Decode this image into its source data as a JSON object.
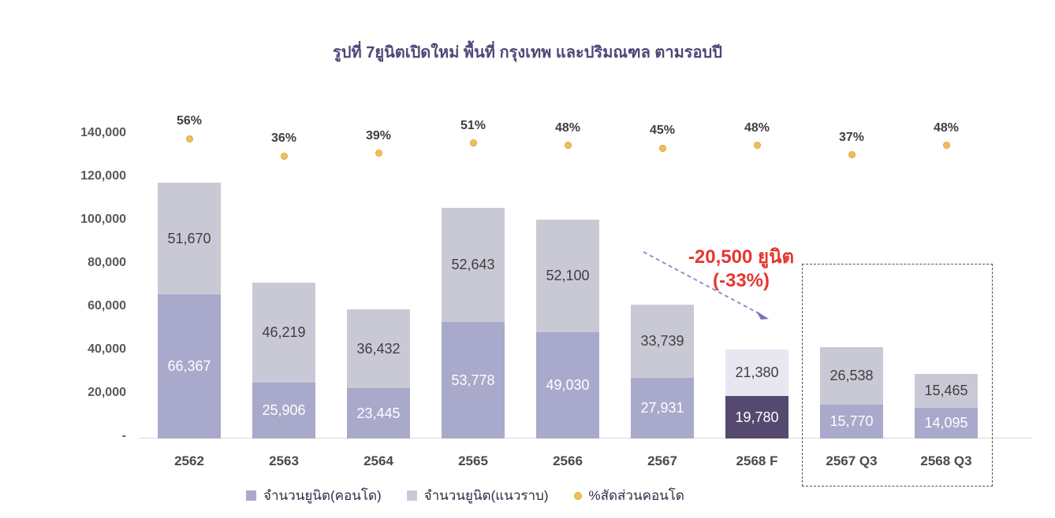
{
  "title": "รูปที่ 7ยูนิตเปิดใหม่ พื้นที่ กรุงเทพ และปริมณฑล ตามรอบปี",
  "chart_data": {
    "type": "bar",
    "stacked": true,
    "categories": [
      "2562",
      "2563",
      "2564",
      "2565",
      "2566",
      "2567",
      "2568 F",
      "2567 Q3",
      "2568 Q3"
    ],
    "series": [
      {
        "name": "จำนวนยูนิต(คอนโด)",
        "values": [
          66367,
          25906,
          23445,
          53778,
          49030,
          27931,
          19780,
          15770,
          14095
        ]
      },
      {
        "name": "จำนวนยูนิต(แนวราบ)",
        "values": [
          51670,
          46219,
          36432,
          52643,
          52100,
          33739,
          21380,
          26538,
          15465
        ]
      }
    ],
    "percent_series": {
      "name": "%สัดส่วนคอนโด",
      "values": [
        56,
        36,
        39,
        51,
        48,
        45,
        48,
        37,
        48
      ],
      "unit": "%"
    },
    "y_ticks": [
      "140,000",
      "120,000",
      "100,000",
      "80,000",
      "60,000",
      "40,000",
      "20,000",
      "-"
    ],
    "ylim": [
      0,
      140000
    ],
    "grid": false,
    "legend_position": "bottom",
    "forecast_category": "2568 F",
    "highlight_categories": [
      "2567 Q3",
      "2568 Q3"
    ],
    "annotation": {
      "line1": "-20,500 ยูนิต",
      "line2": "(-33%)"
    },
    "colors": {
      "condo": "#a9a9cc",
      "lowrise": "#c9c9d6",
      "condo_forecast": "#55496f",
      "lowrise_forecast": "#e7e6f1",
      "dot": "#efc05a",
      "dot_border": "#d9a23b",
      "title": "#4d4878",
      "annotation": "#e5372e",
      "arrow": "#9192cd",
      "bar_label_dark": "#3f3f3f",
      "bar_label_light": "#ffffff"
    }
  }
}
